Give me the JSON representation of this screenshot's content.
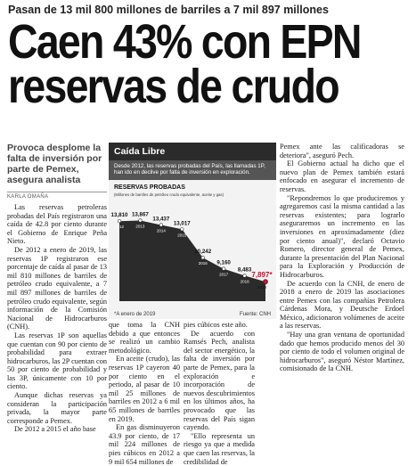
{
  "article": {
    "kicker": "Pasan de 13 mil 800 millones de barriles a 7 mil 897 millones",
    "headline_line1": "Caen 43% con EPN",
    "headline_line2": "reservas de crudo",
    "deck": "Provoca desplome la falta de inversión por parte de Pemex, asegura analista",
    "byline": "KARLA OMAÑA",
    "col1": [
      "Las reservas petroleras probadas del País registraron una caída de 42.8 por ciento durante el Gobierno de Enrique Peña Nieto.",
      "De 2012 a enero de 2019, las reservas 1P registraron ese porcentaje de caída al pasar de 13 mil 810 millones de barriles de petróleo crudo equivalente, a 7 mil 897 millones de barriles de petróleo crudo equivalente, según información de la Comisión Nacional de Hidrocarburos (CNH).",
      "Las reservas 1P son aquellas que cuentan con 90 por ciento de probabilidad para extraer hidrocarburos, las 2P cuentan con 50 por ciento de probabilidad y las 3P, únicamente con 10 por ciento.",
      "Aunque dichas reservas ya consideran la participación privada, la mayor parte corresponde a Pemex.",
      "De 2012 a 2015 el año base"
    ],
    "col2": [
      "que toma la CNH debido a que entonces se realizó un cambio metodológico.",
      "En aceite (crudo), las reservas 1P cayeron 40 por ciento en el periodo, al pasar de 10 mil 25 millones de barriles en 2012 a 6 mil 65 millones de barriles en 2019.",
      "En gas disminuyeron 43.9 por ciento, de 17 mil 224 millones de pies cúbicos en 2012 a 9 mil 654 millones de"
    ],
    "col3": [
      "pies cúbicos este año.",
      "De acuerdo con Ramsés Pech, analista del sector energético, la falta de inversión por parte de Pemex, para la exploración e incorporación de nuevos descubrimientos en los últimos años, ha provocado que las reservas del País sigan cayendo.",
      "\"Ello representa un riesgo ya que a medida que caen las reservas, la credibilidad de"
    ],
    "col5": [
      "Pemex ante las calificadoras se deteriora\", aseguró Pech.",
      "El Gobierno actual ha dicho que el nuevo plan de Pemex también estará enfocado en asegurar el incremento de reservas.",
      "\"Repondremos lo que produciremos y agregaremos casi la misma cantidad a las reservas existentes; para lograrlo aseguraremos un incremento en las inversiones en aproximadamente (diez por ciento anual)\", declaró Octavio Romero, director general de Pemex, durante la presentación del Plan Nacional para la Exploración y Producción de Hidrocarburos.",
      "De acuerdo con la CNH, de enero de 2018 a enero de 2019 las asociaciones entre Pemex con las compañías Petrolera Cárdenas Mora, y Deutsche Erdoel México, adicionaron volúmenes de aceite a las reservas.",
      "\"Hay una gran ventana de oportunidad dado que hemos producido menos del 30 por ciento de todo el volumen original de hidrocarburos\", aseguró Néstor Martínez, comisionado de la CNH."
    ]
  },
  "chart_data": {
    "type": "area",
    "box_title": "Caída Libre",
    "subtitle": "Desde 2012, las reservas probadas del País, las llamadas 1P, han ido en declive por falta de inversión en exploración.",
    "title": "RESERVAS PROBADAS",
    "ylabel": "(Millones de barriles de petróleo crudo equivalente, aceite y gas)",
    "categories": [
      "2012",
      "2013",
      "2014",
      "2015",
      "2016",
      "2017",
      "2018",
      "2019"
    ],
    "values": [
      13810,
      13867,
      13437,
      13017,
      10242,
      9160,
      8483,
      7897
    ],
    "value_labels": [
      "13,810",
      "13,867",
      "13,437",
      "13,017",
      "10,242",
      "9,160",
      "8,483",
      "7,897*"
    ],
    "footnote": "*A enero de 2019",
    "source": "Fuente: CNH",
    "colors": {
      "fill": "#2b2b2b",
      "highlight": "#c8102e",
      "panel": "#f3f3f3"
    }
  }
}
